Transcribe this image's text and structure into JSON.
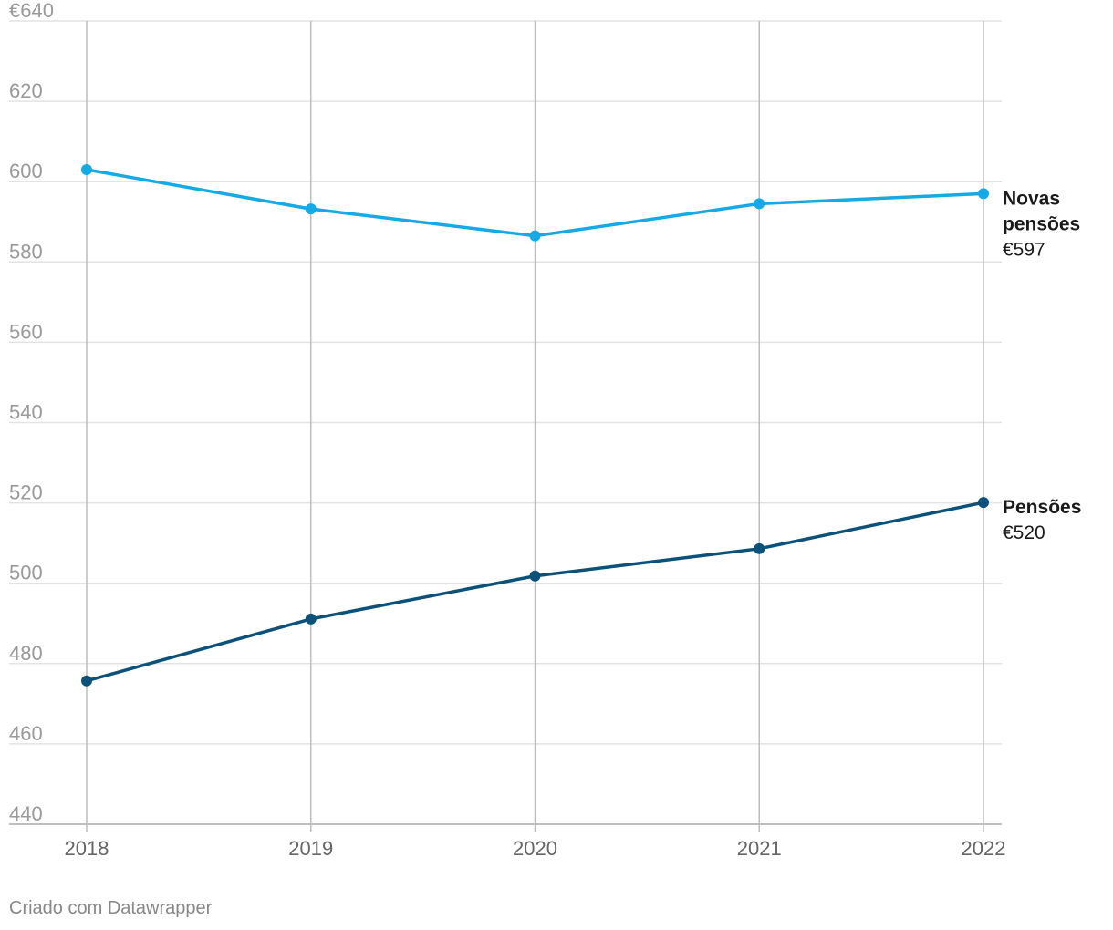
{
  "chart_data": {
    "type": "line",
    "x": [
      "2018",
      "2019",
      "2020",
      "2021",
      "2022"
    ],
    "ylim": [
      440,
      640
    ],
    "y_ticks": [
      440,
      460,
      480,
      500,
      520,
      540,
      560,
      580,
      600,
      620,
      640
    ],
    "y_tick_labels": [
      "440",
      "460",
      "480",
      "500",
      "520",
      "540",
      "560",
      "580",
      "600",
      "620",
      "€640"
    ],
    "grid": true,
    "series": [
      {
        "name": "Novas pensões",
        "name_lines": [
          "Novas",
          "pensões"
        ],
        "value_label": "€597",
        "color": "#15a9e6",
        "values": [
          603,
          593.2,
          586.5,
          594.5,
          597
        ]
      },
      {
        "name": "Pensões",
        "name_lines": [
          "Pensões"
        ],
        "value_label": "€520",
        "color": "#0b5179",
        "values": [
          475.7,
          491.1,
          501.8,
          508.6,
          520.1
        ]
      }
    ]
  },
  "footer": "Criado com Datawrapper"
}
